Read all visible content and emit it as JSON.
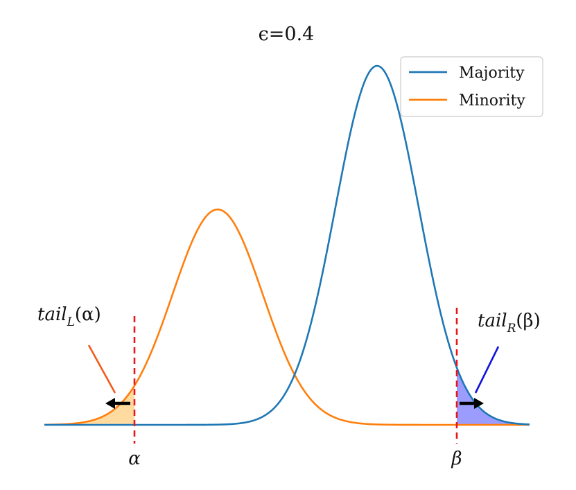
{
  "chart_data": {
    "type": "line",
    "title": "ϵ=0.4",
    "x": {
      "min": -3.5,
      "max": 3.5
    },
    "ylim": [
      0,
      1.05
    ],
    "axes_visible": false,
    "legend": {
      "placement": "top-right",
      "entries": [
        "Majority",
        "Minority"
      ]
    },
    "series": [
      {
        "name": "Majority",
        "color": "#1f77b4",
        "curve": "gaussian",
        "mu": 1.3,
        "sigma": 0.6,
        "peak": 1.0
      },
      {
        "name": "Minority",
        "color": "#ff7f0e",
        "curve": "gaussian",
        "mu": -1.0,
        "sigma": 0.65,
        "peak": 0.6
      }
    ],
    "thresholds": [
      {
        "name": "alpha",
        "label": "α",
        "x": -2.2,
        "color": "#e8161a",
        "style": "dashed"
      },
      {
        "name": "beta",
        "label": "β",
        "x": 2.45,
        "color": "#e8161a",
        "style": "dashed"
      }
    ],
    "shaded_regions": [
      {
        "name": "tail-left",
        "series": "Minority",
        "from": -3.5,
        "to": -2.2,
        "fill": "#ffdba0"
      },
      {
        "name": "tail-right",
        "series": "Majority",
        "from": 2.45,
        "to": 3.5,
        "fill": "#9c9cff"
      }
    ],
    "annotations": [
      {
        "name": "tail-left-label",
        "italic": "tail",
        "subscript": "L",
        "arg": "(α)",
        "pointer_color": "#f25a1e"
      },
      {
        "name": "tail-right-label",
        "italic": "tail",
        "subscript": "R",
        "arg": "(β)",
        "pointer_color": "#1010e0"
      }
    ],
    "arrows": [
      {
        "name": "arrow-left",
        "direction": "left",
        "color": "#000000"
      },
      {
        "name": "arrow-right",
        "direction": "right",
        "color": "#000000"
      }
    ]
  }
}
